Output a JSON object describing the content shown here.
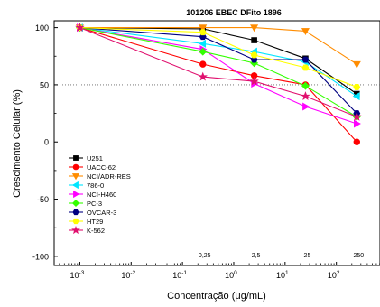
{
  "chart_data": {
    "type": "line",
    "title": "101206  EBEC DFito 1896",
    "xlabel": "Concentração (μg/mL)",
    "ylabel": "Crescimento Celular (%)",
    "x_scale": "log",
    "xlim_log10": [
      -3.5,
      2.85
    ],
    "ylim": [
      -108,
      106
    ],
    "y_ticks": [
      100,
      50,
      0,
      -50,
      -100
    ],
    "x_ticks": [
      {
        "log10": -3,
        "base": "10",
        "exp": "-3"
      },
      {
        "log10": -2,
        "base": "10",
        "exp": "-2"
      },
      {
        "log10": -1,
        "base": "10",
        "exp": "-1"
      },
      {
        "log10": 0,
        "base": "10",
        "exp": "0"
      },
      {
        "log10": 1,
        "base": "10",
        "exp": "1"
      },
      {
        "log10": 2,
        "base": "10",
        "exp": "2"
      }
    ],
    "x_extra_labels": [
      {
        "x": 0.25,
        "label": "0,25"
      },
      {
        "x": 2.5,
        "label": "2,5"
      },
      {
        "x": 25,
        "label": "25"
      },
      {
        "x": 250,
        "label": "250"
      }
    ],
    "reference_line": {
      "y": 50,
      "style": "dotted"
    },
    "x": [
      0.001,
      0.25,
      2.5,
      25,
      250
    ],
    "legend_position": "left-middle",
    "series": [
      {
        "name": "U251",
        "color": "#000000",
        "marker": "square",
        "values": [
          100,
          99,
          89,
          73,
          42
        ]
      },
      {
        "name": "UACC-62",
        "color": "#ff0000",
        "marker": "circle",
        "values": [
          100,
          68,
          58,
          50,
          0
        ]
      },
      {
        "name": "NCI/ADR-RES",
        "color": "#ff8c00",
        "marker": "triangle-down",
        "values": [
          100,
          100,
          100,
          97,
          68
        ]
      },
      {
        "name": "786-0",
        "color": "#00e5ff",
        "marker": "triangle-left",
        "values": [
          100,
          86,
          79,
          70,
          40
        ]
      },
      {
        "name": "NCI-H460",
        "color": "#ff00ff",
        "marker": "triangle-right",
        "values": [
          100,
          81,
          51,
          31,
          16
        ]
      },
      {
        "name": "PC-3",
        "color": "#33ff00",
        "marker": "diamond",
        "values": [
          100,
          79,
          69,
          49,
          22
        ]
      },
      {
        "name": "OVCAR-3",
        "color": "#000080",
        "marker": "hexagon",
        "values": [
          100,
          92,
          72,
          72,
          25
        ]
      },
      {
        "name": "HT29",
        "color": "#ffff00",
        "marker": "hexagon",
        "values": [
          100,
          96,
          76,
          65,
          48
        ]
      },
      {
        "name": "K-562",
        "color": "#e0106e",
        "marker": "star",
        "values": [
          100,
          57,
          53,
          40,
          22
        ]
      }
    ]
  }
}
